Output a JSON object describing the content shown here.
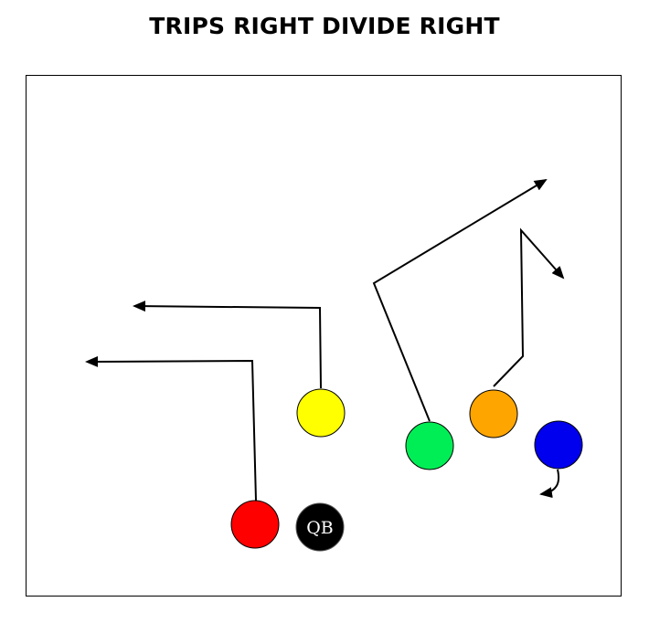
{
  "play": {
    "title": "TRIPS RIGHT DIVIDE RIGHT"
  },
  "colors": {
    "route": "#000000",
    "field_border": "#000000",
    "player_outline": "#000000"
  },
  "players": [
    {
      "id": "red",
      "color": "#ff0000"
    },
    {
      "id": "qb",
      "color": "#000000",
      "label": "QB",
      "label_color": "#ffffff"
    },
    {
      "id": "yellow",
      "color": "#ffff00"
    },
    {
      "id": "green",
      "color": "#00ee55"
    },
    {
      "id": "orange",
      "color": "#ffa500"
    },
    {
      "id": "blue",
      "color": "#0000ee"
    }
  ]
}
